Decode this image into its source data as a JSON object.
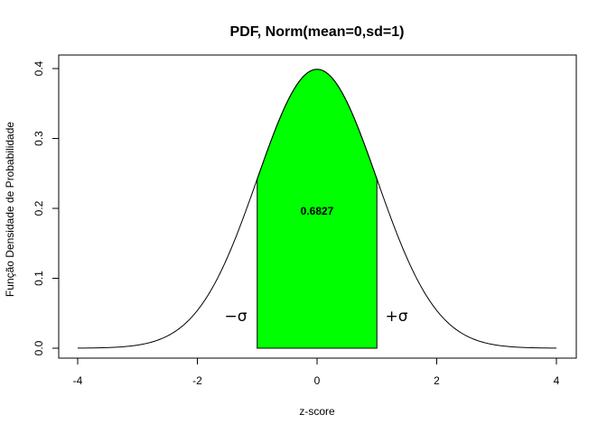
{
  "chart_data": {
    "type": "area",
    "title": "PDF, Norm(mean=0,sd=1)",
    "xlabel": "z-score",
    "ylabel": "Função Densidade de Probabilidade",
    "xlim": [
      -4,
      4
    ],
    "ylim": [
      0,
      0.4
    ],
    "xticks": [
      "-4",
      "-2",
      "0",
      "2",
      "4"
    ],
    "yticks": [
      "0.0",
      "0.1",
      "0.2",
      "0.3",
      "0.4"
    ],
    "curve": {
      "mean": 0,
      "sd": 1,
      "from": -4,
      "to": 4
    },
    "shaded_region": {
      "from": -1,
      "to": 1,
      "color": "#00ff00"
    },
    "annotations": {
      "probability": "0.6827",
      "minus_sigma": "−σ",
      "plus_sigma": "+σ"
    },
    "grid": false
  }
}
